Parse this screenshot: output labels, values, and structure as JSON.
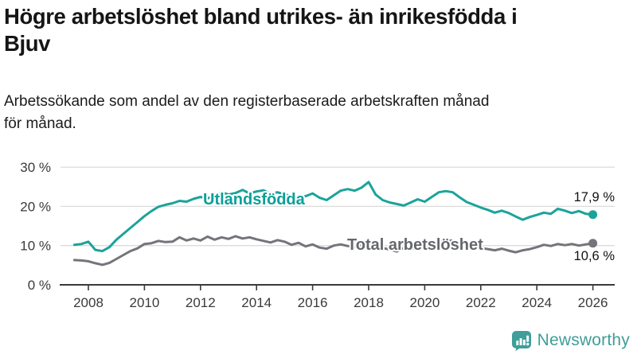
{
  "header": {
    "title": "Högre arbetslöshet bland utrikes- än inrikesfödda i\nBjuv",
    "subtitle": "Arbetssökande som andel av den registerbaserade arbetskraften månad\nför månad."
  },
  "chart_data": {
    "type": "line",
    "title": "Högre arbetslöshet bland utrikes- än inrikesfödda i Bjuv",
    "subtitle": "Arbetssökande som andel av den registerbaserade arbetskraften månad för månad.",
    "unit": "%",
    "x_start": 2007.5,
    "x_step": 0.25,
    "xlim": [
      2007.3,
      2026.8
    ],
    "ylim": [
      0,
      30
    ],
    "grid": "horizontal",
    "grid_color": "#dbdbdb",
    "axis_color": "#3a3a3a",
    "x_ticks": [
      2008,
      2010,
      2012,
      2014,
      2016,
      2018,
      2020,
      2022,
      2024,
      2026
    ],
    "y_ticks": [
      {
        "value": 0,
        "label": "0 %"
      },
      {
        "value": 10,
        "label": "10 %"
      },
      {
        "value": 20,
        "label": "20 %"
      },
      {
        "value": 30,
        "label": "30 %"
      }
    ],
    "series": [
      {
        "name": "Utlandsfödda",
        "color": "#1BA39B",
        "label_color": "#0AA099",
        "end_label": "17,9 %",
        "end_value": 17.9,
        "values": [
          10.2,
          10.4,
          11.0,
          8.9,
          8.6,
          9.6,
          11.5,
          13.0,
          14.5,
          16.0,
          17.5,
          18.8,
          19.9,
          20.4,
          20.8,
          21.4,
          21.2,
          21.9,
          22.4,
          22.0,
          22.8,
          23.6,
          23.0,
          23.4,
          24.2,
          23.3,
          23.8,
          24.1,
          23.2,
          23.6,
          23.0,
          22.7,
          22.4,
          22.6,
          23.3,
          22.2,
          21.6,
          22.8,
          24.0,
          24.4,
          24.0,
          24.8,
          26.2,
          23.0,
          21.6,
          21.0,
          20.6,
          20.2,
          21.0,
          21.8,
          21.2,
          22.4,
          23.6,
          23.9,
          23.6,
          22.3,
          21.1,
          20.4,
          19.7,
          19.1,
          18.4,
          18.9,
          18.3,
          17.4,
          16.6,
          17.3,
          17.8,
          18.4,
          18.1,
          19.4,
          18.9,
          18.3,
          18.8,
          18.1,
          17.9
        ]
      },
      {
        "name": "Total arbetslöshet",
        "color": "#73757A",
        "label_color": "#65676C",
        "end_label": "10,6 %",
        "end_value": 10.6,
        "values": [
          6.3,
          6.2,
          6.0,
          5.5,
          5.1,
          5.6,
          6.6,
          7.6,
          8.6,
          9.3,
          10.4,
          10.6,
          11.2,
          10.9,
          11.0,
          12.1,
          11.3,
          11.8,
          11.3,
          12.3,
          11.5,
          12.1,
          11.7,
          12.4,
          11.8,
          12.1,
          11.6,
          11.2,
          10.8,
          11.4,
          11.0,
          10.2,
          10.7,
          9.8,
          10.3,
          9.5,
          9.2,
          10.0,
          10.3,
          9.9,
          9.6,
          10.1,
          10.4,
          9.8,
          9.4,
          9.0,
          8.5,
          9.4,
          9.0,
          9.6,
          9.9,
          10.6,
          11.1,
          11.4,
          11.2,
          10.6,
          10.1,
          9.7,
          9.4,
          9.1,
          8.8,
          9.2,
          8.7,
          8.3,
          8.8,
          9.1,
          9.6,
          10.2,
          9.9,
          10.4,
          10.1,
          10.4,
          10.0,
          10.3,
          10.6
        ]
      }
    ]
  },
  "footer": {
    "brand": "Newsworthy",
    "brand_color": "#3F9E99",
    "brand_icon": "speech-bubble-bar-chart-icon"
  }
}
